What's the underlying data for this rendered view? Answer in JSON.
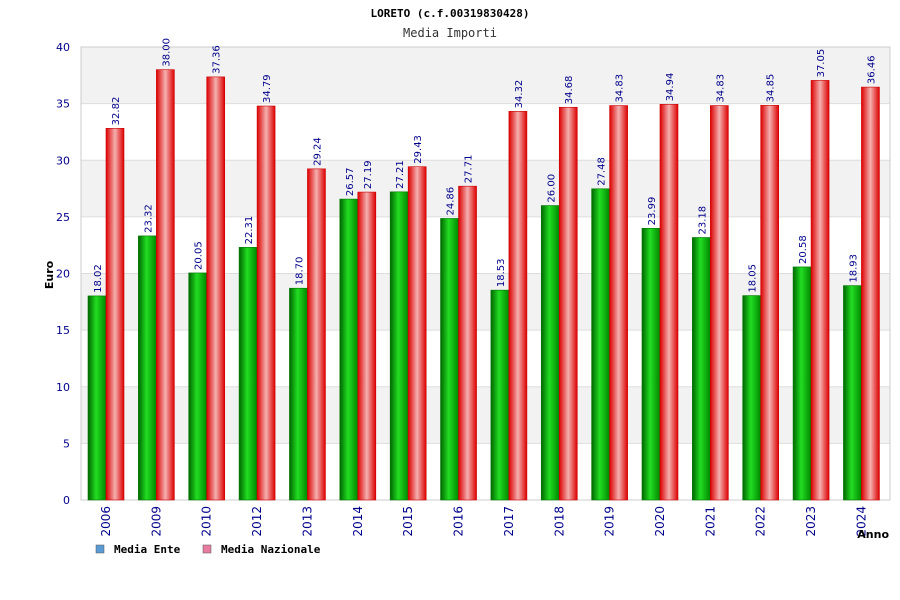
{
  "chart_data": {
    "type": "bar",
    "title": "LORETO (c.f.00319830428)",
    "subtitle": "Media Importi",
    "ylabel": "Euro",
    "xlabel": "Anno",
    "ylim": [
      0,
      40
    ],
    "yticks": [
      "0",
      "5",
      "10",
      "15",
      "20",
      "25",
      "30",
      "35",
      "40"
    ],
    "grid": true,
    "legend_position": "bottom-left",
    "categories": [
      "2006",
      "2009",
      "2010",
      "2012",
      "2013",
      "2014",
      "2015",
      "2016",
      "2017",
      "2018",
      "2019",
      "2020",
      "2021",
      "2022",
      "2023",
      "2024"
    ],
    "series": [
      {
        "name": "Media Ente",
        "color": "#00aa00",
        "values": [
          18.02,
          23.32,
          20.05,
          22.31,
          18.7,
          26.57,
          27.21,
          24.86,
          18.53,
          26.0,
          27.48,
          23.99,
          23.18,
          18.05,
          20.58,
          18.93
        ],
        "labels": [
          "18.02",
          "23.32",
          "20.05",
          "22.31",
          "18.70",
          "26.57",
          "27.21",
          "24.86",
          "18.53",
          "26.00",
          "27.48",
          "23.99",
          "23.18",
          "18.05",
          "20.58",
          "18.93"
        ]
      },
      {
        "name": "Media Nazionale",
        "color": "#ee1111",
        "values": [
          32.82,
          38.0,
          37.36,
          34.79,
          29.24,
          27.19,
          29.43,
          27.71,
          34.32,
          34.68,
          34.83,
          34.94,
          34.83,
          34.85,
          37.05,
          36.46
        ],
        "labels": [
          "32.82",
          "38.00",
          "37.36",
          "34.79",
          "29.24",
          "27.19",
          "29.43",
          "27.71",
          "34.32",
          "34.68",
          "34.83",
          "34.94",
          "34.83",
          "34.85",
          "37.05",
          "36.46"
        ]
      }
    ],
    "legend": [
      {
        "label": "Media Ente",
        "color": "#5b9bd5"
      },
      {
        "label": "Media Nazionale",
        "color": "#e87ca0"
      }
    ]
  }
}
